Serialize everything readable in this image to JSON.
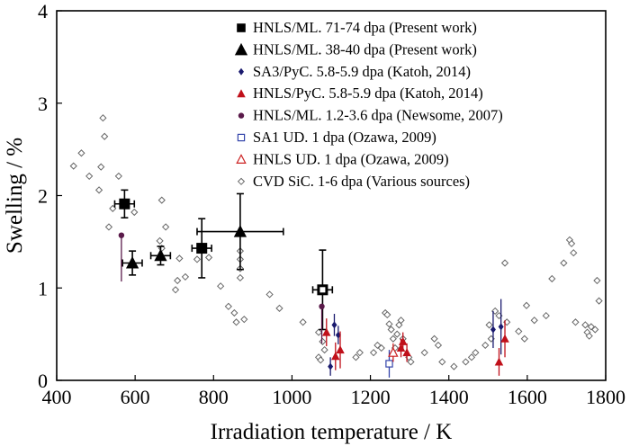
{
  "chart_data": {
    "type": "scatter",
    "xlabel": "Irradiation temperature / K",
    "ylabel": "Swelling / %",
    "xlim": [
      400,
      1800
    ],
    "ylim": [
      0,
      4
    ],
    "xticks": [
      400,
      600,
      800,
      1000,
      1200,
      1400,
      1600,
      1800
    ],
    "yticks": [
      0,
      1,
      2,
      3,
      4
    ],
    "grid": false,
    "legend_position": "top-right",
    "series": [
      {
        "name": "HNLS/ML. 71-74 dpa (Present work)",
        "marker": "square-filled",
        "color": "#000000",
        "error_color": "#000000",
        "points": [
          {
            "x": 573,
            "y": 1.91,
            "xerr": 25,
            "yerr": 0.15
          },
          {
            "x": 770,
            "y": 1.43,
            "xerr": 25,
            "yerr": 0.32
          },
          {
            "x": 1078,
            "y": 0.98,
            "xerr": 25,
            "yerr": 0.43
          }
        ]
      },
      {
        "name": "HNLS/ML. 38-40 dpa (Present work)",
        "marker": "triangle-filled",
        "color": "#000000",
        "error_color": "#000000",
        "points": [
          {
            "x": 593,
            "y": 1.27,
            "xerr": 25,
            "yerr": 0.13
          },
          {
            "x": 665,
            "y": 1.35,
            "xerr": 25,
            "yerr": 0.1
          },
          {
            "x": 868,
            "y": 1.61,
            "xerr": 110,
            "yerr": 0.41
          }
        ]
      },
      {
        "name": "SA3/PyC. 5.8-5.9 dpa (Katoh, 2014)",
        "marker": "diamond-filled",
        "color": "#1a1a6e",
        "error_color": "#1a1a6e",
        "points": [
          {
            "x": 1098,
            "y": 0.15,
            "yerr": 0.1
          },
          {
            "x": 1108,
            "y": 0.6,
            "yerr": 0.12
          },
          {
            "x": 1118,
            "y": 0.49,
            "yerr": 0.1
          },
          {
            "x": 1533,
            "y": 0.58,
            "yerr": 0.3
          },
          {
            "x": 1513,
            "y": 0.55,
            "yerr": 0.2
          }
        ]
      },
      {
        "name": "HNLS/PyC. 5.8-5.9 dpa (Katoh, 2014)",
        "marker": "triangle-filled",
        "color": "#c0101a",
        "error_color": "#c0101a",
        "points": [
          {
            "x": 1088,
            "y": 0.52,
            "yerr": 0.15
          },
          {
            "x": 1111,
            "y": 0.26,
            "yerr": 0.15
          },
          {
            "x": 1123,
            "y": 0.33,
            "yerr": 0.2
          },
          {
            "x": 1283,
            "y": 0.42,
            "yerr": 0.1
          },
          {
            "x": 1278,
            "y": 0.35,
            "yerr": 0.1
          },
          {
            "x": 1293,
            "y": 0.3,
            "yerr": 0.1
          },
          {
            "x": 1528,
            "y": 0.2,
            "yerr": 0.15
          },
          {
            "x": 1543,
            "y": 0.45,
            "yerr": 0.2
          }
        ]
      },
      {
        "name": "HNLS/ML. 1.2-3.6 dpa (Newsome, 2007)",
        "marker": "circle-filled",
        "color": "#5a1a4a",
        "error_color": "#5a1a4a",
        "points": [
          {
            "x": 565,
            "y": 1.57,
            "yerr_low": 0.5,
            "yerr_high": 0.0
          },
          {
            "x": 1076,
            "y": 0.8,
            "yerr_low": 0.4,
            "yerr_high": 0.0
          }
        ]
      },
      {
        "name": "SA1 UD. 1 dpa (Ozawa, 2009)",
        "marker": "square-open",
        "color": "#3344aa",
        "error_color": "#3344aa",
        "points": [
          {
            "x": 1248,
            "y": 0.18,
            "yerr": 0.15
          }
        ]
      },
      {
        "name": "HNLS UD. 1 dpa (Ozawa, 2009)",
        "marker": "triangle-open",
        "color": "#cc2222",
        "error_color": "#cc2222",
        "points": [
          {
            "x": 1258,
            "y": 0.3,
            "yerr": 0.1
          }
        ]
      },
      {
        "name": "CVD SiC. 1-6 dpa (Various sources)",
        "marker": "diamond-open",
        "color": "#666666",
        "points": [
          {
            "x": 443,
            "y": 2.32
          },
          {
            "x": 463,
            "y": 2.46
          },
          {
            "x": 483,
            "y": 2.21
          },
          {
            "x": 508,
            "y": 2.06
          },
          {
            "x": 513,
            "y": 2.31
          },
          {
            "x": 518,
            "y": 2.84
          },
          {
            "x": 522,
            "y": 2.64
          },
          {
            "x": 543,
            "y": 1.86
          },
          {
            "x": 558,
            "y": 2.21
          },
          {
            "x": 533,
            "y": 1.66
          },
          {
            "x": 598,
            "y": 1.82
          },
          {
            "x": 663,
            "y": 1.51
          },
          {
            "x": 668,
            "y": 1.43
          },
          {
            "x": 668,
            "y": 1.95
          },
          {
            "x": 678,
            "y": 1.66
          },
          {
            "x": 703,
            "y": 0.98
          },
          {
            "x": 708,
            "y": 1.08
          },
          {
            "x": 713,
            "y": 1.32
          },
          {
            "x": 728,
            "y": 1.12
          },
          {
            "x": 758,
            "y": 1.31
          },
          {
            "x": 788,
            "y": 1.33
          },
          {
            "x": 818,
            "y": 1.02
          },
          {
            "x": 838,
            "y": 0.8
          },
          {
            "x": 853,
            "y": 0.73
          },
          {
            "x": 858,
            "y": 0.63
          },
          {
            "x": 868,
            "y": 1.4
          },
          {
            "x": 868,
            "y": 1.31
          },
          {
            "x": 868,
            "y": 1.21
          },
          {
            "x": 868,
            "y": 1.11
          },
          {
            "x": 878,
            "y": 0.66
          },
          {
            "x": 943,
            "y": 0.93
          },
          {
            "x": 968,
            "y": 0.78
          },
          {
            "x": 1028,
            "y": 0.63
          },
          {
            "x": 1068,
            "y": 0.52
          },
          {
            "x": 1078,
            "y": 0.42
          },
          {
            "x": 1068,
            "y": 0.25
          },
          {
            "x": 1073,
            "y": 0.22
          },
          {
            "x": 1083,
            "y": 0.33
          },
          {
            "x": 1163,
            "y": 0.25
          },
          {
            "x": 1173,
            "y": 0.3
          },
          {
            "x": 1208,
            "y": 0.3
          },
          {
            "x": 1218,
            "y": 0.38
          },
          {
            "x": 1228,
            "y": 0.35
          },
          {
            "x": 1238,
            "y": 0.73
          },
          {
            "x": 1243,
            "y": 0.71
          },
          {
            "x": 1248,
            "y": 0.61
          },
          {
            "x": 1253,
            "y": 0.55
          },
          {
            "x": 1258,
            "y": 0.45
          },
          {
            "x": 1263,
            "y": 0.35
          },
          {
            "x": 1268,
            "y": 0.5
          },
          {
            "x": 1273,
            "y": 0.6
          },
          {
            "x": 1278,
            "y": 0.65
          },
          {
            "x": 1283,
            "y": 0.45
          },
          {
            "x": 1298,
            "y": 0.25
          },
          {
            "x": 1303,
            "y": 0.2
          },
          {
            "x": 1338,
            "y": 0.3
          },
          {
            "x": 1363,
            "y": 0.45
          },
          {
            "x": 1373,
            "y": 0.38
          },
          {
            "x": 1383,
            "y": 0.2
          },
          {
            "x": 1413,
            "y": 0.15
          },
          {
            "x": 1443,
            "y": 0.2
          },
          {
            "x": 1458,
            "y": 0.25
          },
          {
            "x": 1468,
            "y": 0.3
          },
          {
            "x": 1493,
            "y": 0.38
          },
          {
            "x": 1503,
            "y": 0.6
          },
          {
            "x": 1508,
            "y": 0.45
          },
          {
            "x": 1518,
            "y": 0.75
          },
          {
            "x": 1528,
            "y": 0.7
          },
          {
            "x": 1543,
            "y": 1.27
          },
          {
            "x": 1548,
            "y": 0.63
          },
          {
            "x": 1578,
            "y": 0.53
          },
          {
            "x": 1593,
            "y": 0.45
          },
          {
            "x": 1598,
            "y": 0.81
          },
          {
            "x": 1618,
            "y": 0.65
          },
          {
            "x": 1648,
            "y": 0.7
          },
          {
            "x": 1663,
            "y": 1.1
          },
          {
            "x": 1693,
            "y": 1.27
          },
          {
            "x": 1708,
            "y": 1.52
          },
          {
            "x": 1713,
            "y": 1.48
          },
          {
            "x": 1718,
            "y": 1.38
          },
          {
            "x": 1723,
            "y": 0.63
          },
          {
            "x": 1748,
            "y": 0.6
          },
          {
            "x": 1753,
            "y": 0.52
          },
          {
            "x": 1758,
            "y": 0.48
          },
          {
            "x": 1763,
            "y": 0.58
          },
          {
            "x": 1773,
            "y": 0.55
          },
          {
            "x": 1778,
            "y": 1.08
          },
          {
            "x": 1783,
            "y": 0.86
          }
        ]
      }
    ]
  }
}
